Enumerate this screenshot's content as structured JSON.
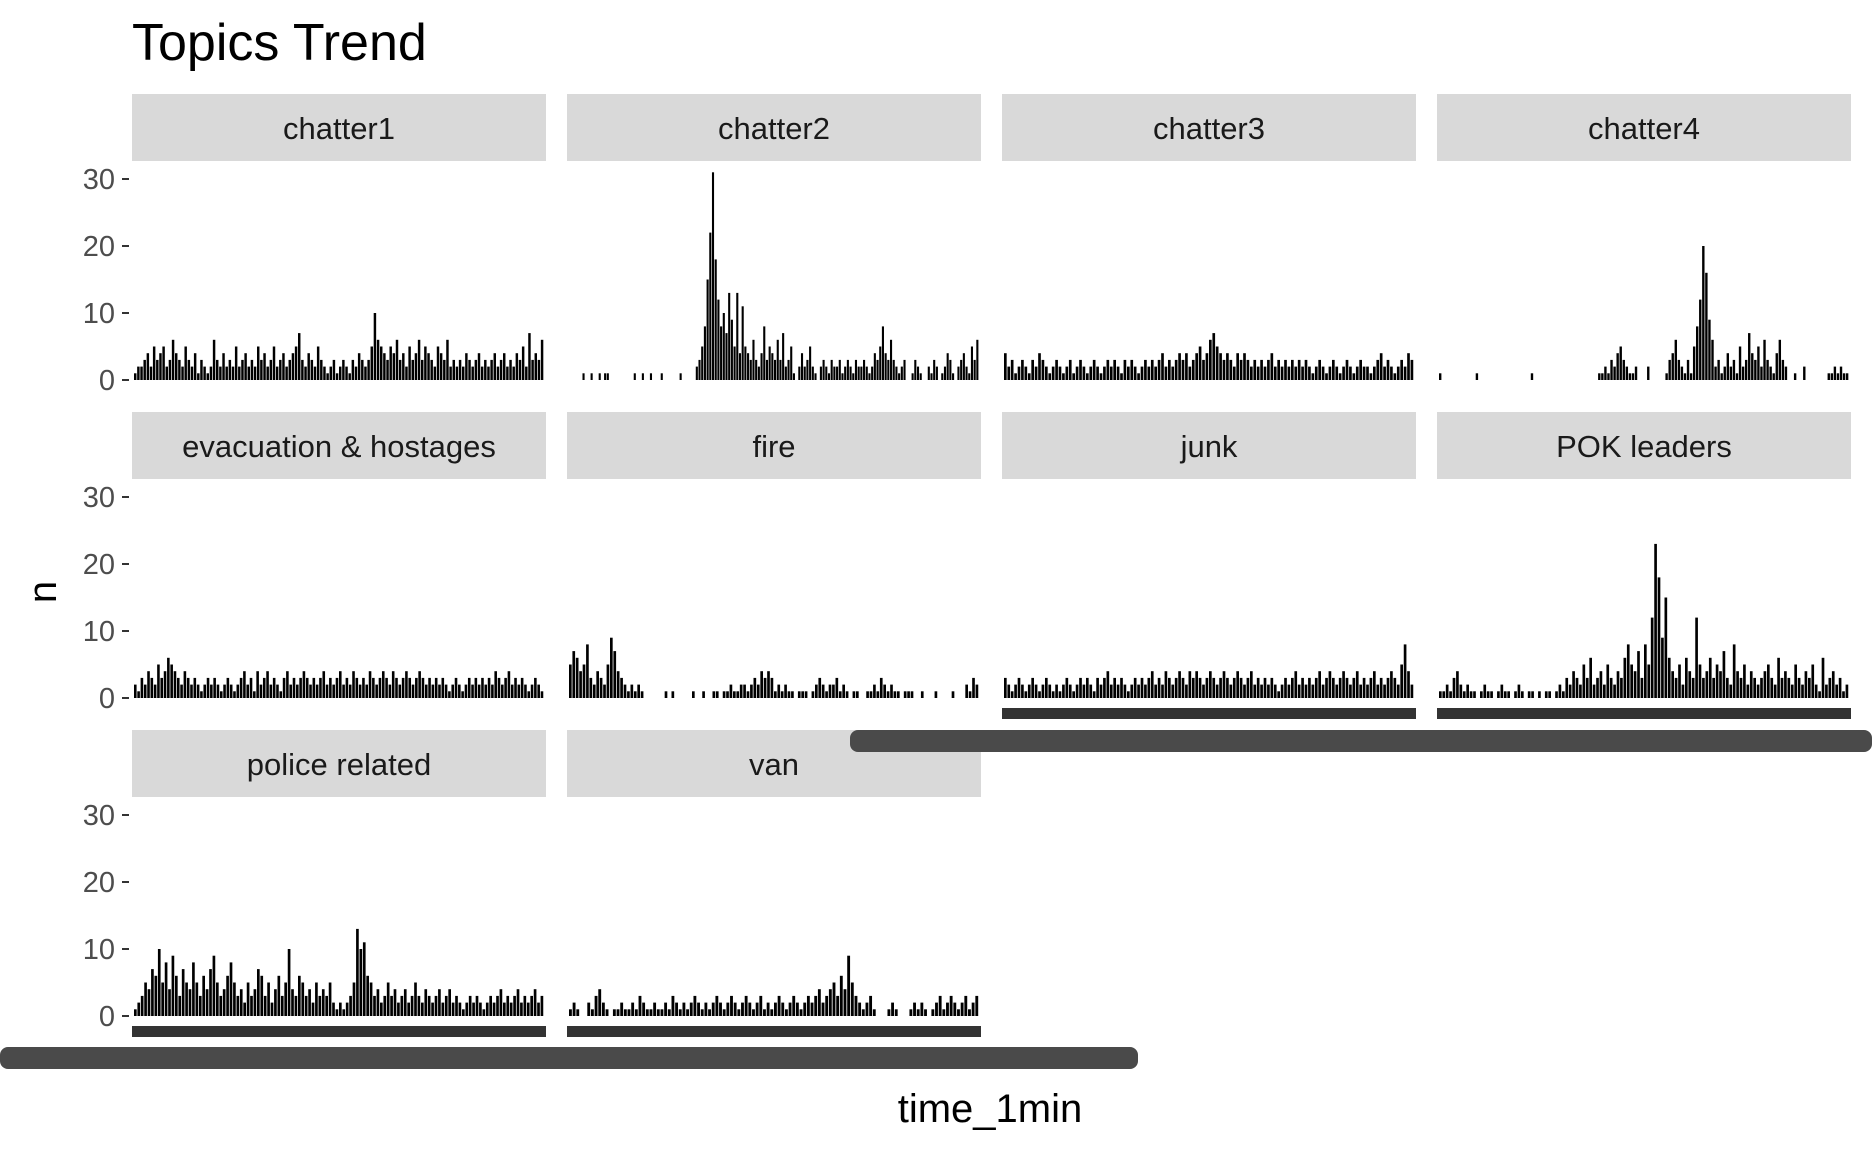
{
  "chart_data": {
    "type": "bar",
    "title": "Topics Trend",
    "xlabel": "time_1min",
    "ylabel": "n",
    "ylim": [
      0,
      30
    ],
    "yticks": [
      0,
      10,
      20,
      30
    ],
    "facet_layout": "wrap, 4 columns, shared y axis",
    "grid": false,
    "bar_color": "#000000",
    "strip_color": "#d9d9d9",
    "x_axis_color": "#333333",
    "panels": [
      {
        "name": "chatter1",
        "values": [
          1,
          2,
          2,
          3,
          4,
          2,
          5,
          3,
          4,
          5,
          2,
          3,
          6,
          4,
          3,
          2,
          5,
          3,
          2,
          4,
          1,
          3,
          2,
          1,
          2,
          6,
          3,
          2,
          4,
          2,
          3,
          2,
          5,
          2,
          3,
          4,
          2,
          3,
          2,
          5,
          3,
          4,
          2,
          3,
          5,
          2,
          3,
          4,
          2,
          3,
          4,
          5,
          7,
          3,
          2,
          4,
          3,
          2,
          5,
          3,
          2,
          1,
          2,
          3,
          1,
          2,
          3,
          2,
          1,
          3,
          2,
          4,
          3,
          2,
          3,
          5,
          10,
          6,
          5,
          4,
          3,
          5,
          4,
          6,
          3,
          4,
          2,
          5,
          3,
          4,
          6,
          3,
          5,
          4,
          3,
          2,
          5,
          4,
          3,
          6,
          2,
          3,
          2,
          3,
          2,
          4,
          3,
          2,
          3,
          4,
          2,
          3,
          2,
          3,
          4,
          2,
          3,
          4,
          2,
          3,
          2,
          4,
          3,
          5,
          2,
          7,
          3,
          4,
          3,
          6
        ]
      },
      {
        "name": "chatter2",
        "values": [
          0,
          0,
          0,
          0,
          0,
          1,
          0,
          0,
          1,
          0,
          0,
          1,
          0,
          1,
          1,
          0,
          0,
          0,
          0,
          0,
          0,
          0,
          0,
          0,
          1,
          0,
          0,
          1,
          0,
          0,
          1,
          0,
          0,
          0,
          1,
          0,
          0,
          0,
          0,
          0,
          0,
          1,
          0,
          0,
          0,
          0,
          0,
          2,
          3,
          5,
          8,
          15,
          22,
          31,
          18,
          12,
          8,
          10,
          7,
          13,
          9,
          5,
          13,
          4,
          11,
          5,
          4,
          3,
          6,
          3,
          2,
          4,
          8,
          3,
          5,
          4,
          3,
          6,
          3,
          7,
          2,
          3,
          5,
          1,
          0,
          2,
          4,
          2,
          3,
          5,
          2,
          1,
          0,
          2,
          3,
          2,
          1,
          3,
          2,
          2,
          3,
          1,
          2,
          3,
          2,
          1,
          3,
          2,
          2,
          3,
          2,
          1,
          2,
          4,
          3,
          5,
          8,
          4,
          3,
          6,
          3,
          2,
          1,
          2,
          3,
          0,
          0,
          1,
          3,
          2,
          1,
          0,
          0,
          2,
          1,
          3,
          2,
          0,
          1,
          2,
          4,
          3,
          1,
          0,
          2,
          3,
          4,
          2,
          1,
          5,
          3,
          6
        ]
      },
      {
        "name": "chatter3",
        "values": [
          4,
          2,
          3,
          1,
          2,
          3,
          2,
          1,
          3,
          2,
          4,
          3,
          2,
          1,
          2,
          3,
          2,
          1,
          2,
          3,
          1,
          2,
          3,
          2,
          1,
          2,
          3,
          2,
          1,
          2,
          3,
          2,
          3,
          2,
          1,
          3,
          2,
          3,
          2,
          1,
          2,
          3,
          2,
          3,
          2,
          3,
          4,
          2,
          3,
          2,
          3,
          4,
          3,
          4,
          2,
          3,
          4,
          5,
          3,
          4,
          6,
          7,
          5,
          4,
          3,
          4,
          3,
          2,
          4,
          3,
          4,
          3,
          2,
          3,
          2,
          3,
          2,
          3,
          4,
          2,
          3,
          2,
          3,
          2,
          3,
          2,
          3,
          2,
          3,
          2,
          1,
          2,
          3,
          2,
          1,
          2,
          3,
          2,
          1,
          2,
          3,
          2,
          1,
          2,
          3,
          2,
          2,
          1,
          2,
          3,
          4,
          2,
          3,
          2,
          1,
          2,
          3,
          2,
          4,
          3
        ]
      },
      {
        "name": "chatter4",
        "values": [
          1,
          0,
          0,
          0,
          0,
          0,
          0,
          0,
          0,
          0,
          0,
          0,
          1,
          0,
          0,
          0,
          0,
          0,
          0,
          0,
          0,
          0,
          0,
          0,
          0,
          0,
          0,
          0,
          0,
          0,
          1,
          0,
          0,
          0,
          0,
          0,
          0,
          0,
          0,
          0,
          0,
          0,
          0,
          0,
          0,
          0,
          0,
          0,
          0,
          0,
          0,
          0,
          1,
          1,
          2,
          1,
          3,
          2,
          4,
          5,
          3,
          2,
          1,
          1,
          2,
          0,
          0,
          0,
          2,
          0,
          0,
          0,
          0,
          0,
          1,
          3,
          4,
          6,
          3,
          2,
          1,
          3,
          1,
          5,
          8,
          12,
          20,
          16,
          9,
          6,
          2,
          3,
          1,
          2,
          4,
          2,
          3,
          1,
          5,
          2,
          3,
          7,
          4,
          3,
          5,
          2,
          6,
          3,
          2,
          1,
          4,
          6,
          3,
          2,
          0,
          0,
          1,
          0,
          0,
          2,
          0,
          0,
          0,
          0,
          0,
          0,
          0,
          1,
          1,
          2,
          1,
          2,
          1,
          1
        ]
      },
      {
        "name": "evacuation & hostages",
        "values": [
          2,
          1,
          3,
          2,
          4,
          3,
          2,
          5,
          3,
          4,
          6,
          5,
          4,
          3,
          2,
          4,
          3,
          2,
          3,
          2,
          1,
          2,
          3,
          2,
          3,
          2,
          1,
          2,
          3,
          2,
          1,
          2,
          3,
          4,
          2,
          3,
          1,
          4,
          2,
          3,
          4,
          2,
          3,
          2,
          1,
          3,
          4,
          2,
          3,
          2,
          3,
          4,
          3,
          2,
          3,
          2,
          3,
          4,
          2,
          3,
          2,
          3,
          4,
          2,
          3,
          2,
          4,
          3,
          2,
          3,
          2,
          4,
          3,
          2,
          3,
          4,
          3,
          2,
          4,
          3,
          2,
          3,
          4,
          3,
          2,
          3,
          4,
          3,
          2,
          3,
          2,
          3,
          2,
          3,
          2,
          1,
          2,
          3,
          2,
          1,
          2,
          3,
          2,
          3,
          2,
          3,
          2,
          3,
          2,
          4,
          3,
          2,
          3,
          4,
          2,
          3,
          2,
          3,
          2,
          1,
          2,
          3,
          2,
          1
        ]
      },
      {
        "name": "fire",
        "values": [
          5,
          7,
          6,
          4,
          5,
          8,
          3,
          2,
          4,
          3,
          2,
          5,
          9,
          7,
          4,
          3,
          2,
          1,
          2,
          1,
          2,
          1,
          0,
          0,
          0,
          0,
          0,
          0,
          1,
          0,
          1,
          0,
          0,
          0,
          0,
          0,
          1,
          0,
          0,
          1,
          0,
          0,
          1,
          1,
          0,
          1,
          1,
          2,
          1,
          1,
          2,
          2,
          1,
          2,
          3,
          2,
          4,
          3,
          4,
          3,
          1,
          2,
          1,
          2,
          1,
          1,
          0,
          1,
          1,
          1,
          0,
          1,
          2,
          3,
          2,
          1,
          2,
          2,
          3,
          1,
          2,
          1,
          0,
          1,
          1,
          0,
          0,
          1,
          1,
          2,
          1,
          3,
          2,
          1,
          2,
          1,
          1,
          0,
          1,
          1,
          1,
          0,
          0,
          1,
          0,
          0,
          0,
          1,
          0,
          0,
          0,
          0,
          1,
          0,
          0,
          0,
          2,
          1,
          3,
          2
        ]
      },
      {
        "name": "junk",
        "values": [
          3,
          2,
          1,
          2,
          3,
          2,
          1,
          2,
          3,
          2,
          1,
          2,
          3,
          2,
          1,
          2,
          1,
          2,
          3,
          2,
          1,
          2,
          3,
          2,
          3,
          2,
          1,
          3,
          2,
          3,
          4,
          2,
          3,
          2,
          3,
          2,
          1,
          2,
          3,
          2,
          3,
          2,
          3,
          4,
          2,
          3,
          2,
          4,
          3,
          2,
          3,
          4,
          3,
          2,
          4,
          3,
          4,
          3,
          2,
          3,
          4,
          3,
          2,
          3,
          4,
          3,
          2,
          3,
          4,
          3,
          2,
          3,
          4,
          2,
          3,
          2,
          3,
          2,
          3,
          2,
          1,
          2,
          3,
          2,
          3,
          4,
          2,
          3,
          2,
          3,
          2,
          3,
          4,
          2,
          3,
          4,
          3,
          2,
          3,
          4,
          3,
          2,
          3,
          4,
          2,
          3,
          2,
          3,
          4,
          2,
          3,
          2,
          3,
          4,
          3,
          2,
          5,
          8,
          4,
          2
        ]
      },
      {
        "name": "POK leaders",
        "values": [
          1,
          1,
          2,
          1,
          3,
          4,
          2,
          1,
          2,
          1,
          1,
          0,
          1,
          2,
          1,
          1,
          0,
          1,
          2,
          1,
          1,
          0,
          1,
          2,
          1,
          0,
          1,
          1,
          0,
          1,
          0,
          1,
          1,
          0,
          1,
          2,
          1,
          3,
          2,
          4,
          3,
          2,
          5,
          3,
          6,
          2,
          3,
          4,
          2,
          5,
          3,
          2,
          4,
          3,
          6,
          8,
          5,
          4,
          7,
          3,
          8,
          5,
          12,
          23,
          18,
          9,
          15,
          6,
          4,
          3,
          5,
          2,
          6,
          4,
          3,
          12,
          5,
          3,
          4,
          6,
          3,
          5,
          4,
          7,
          3,
          2,
          8,
          4,
          3,
          5,
          2,
          4,
          3,
          2,
          3,
          4,
          5,
          3,
          2,
          6,
          3,
          4,
          3,
          2,
          5,
          3,
          2,
          4,
          3,
          5,
          2,
          1,
          6,
          2,
          3,
          4,
          2,
          3,
          1,
          2
        ]
      },
      {
        "name": "police related",
        "values": [
          1,
          2,
          3,
          5,
          4,
          7,
          6,
          10,
          5,
          8,
          4,
          9,
          6,
          3,
          7,
          5,
          4,
          8,
          5,
          3,
          6,
          4,
          7,
          9,
          5,
          3,
          4,
          6,
          8,
          5,
          3,
          4,
          2,
          5,
          3,
          4,
          7,
          6,
          3,
          5,
          2,
          4,
          6,
          3,
          5,
          10,
          4,
          3,
          6,
          5,
          3,
          4,
          2,
          5,
          3,
          4,
          3,
          5,
          2,
          1,
          2,
          1,
          2,
          3,
          5,
          13,
          10,
          11,
          6,
          5,
          3,
          4,
          2,
          3,
          5,
          3,
          4,
          2,
          3,
          4,
          2,
          3,
          5,
          3,
          2,
          4,
          3,
          2,
          3,
          4,
          2,
          3,
          4,
          2,
          3,
          2,
          1,
          2,
          3,
          2,
          3,
          2,
          1,
          2,
          3,
          2,
          3,
          4,
          2,
          3,
          2,
          3,
          4,
          2,
          3,
          2,
          3,
          4,
          2,
          3
        ]
      },
      {
        "name": "van",
        "values": [
          1,
          2,
          1,
          0,
          0,
          2,
          1,
          3,
          4,
          2,
          1,
          0,
          1,
          1,
          2,
          1,
          1,
          2,
          1,
          3,
          2,
          1,
          1,
          2,
          1,
          1,
          2,
          1,
          3,
          2,
          1,
          2,
          1,
          2,
          3,
          2,
          1,
          2,
          1,
          2,
          3,
          2,
          1,
          2,
          3,
          2,
          1,
          2,
          3,
          2,
          1,
          2,
          3,
          1,
          2,
          1,
          2,
          3,
          2,
          1,
          2,
          3,
          2,
          1,
          2,
          3,
          2,
          3,
          4,
          2,
          3,
          4,
          5,
          3,
          6,
          4,
          9,
          5,
          3,
          2,
          1,
          2,
          3,
          1,
          0,
          0,
          0,
          1,
          2,
          1,
          0,
          0,
          0,
          1,
          2,
          1,
          2,
          1,
          0,
          1,
          2,
          3,
          1,
          2,
          3,
          2,
          1,
          2,
          3,
          1,
          2,
          3
        ]
      }
    ]
  }
}
